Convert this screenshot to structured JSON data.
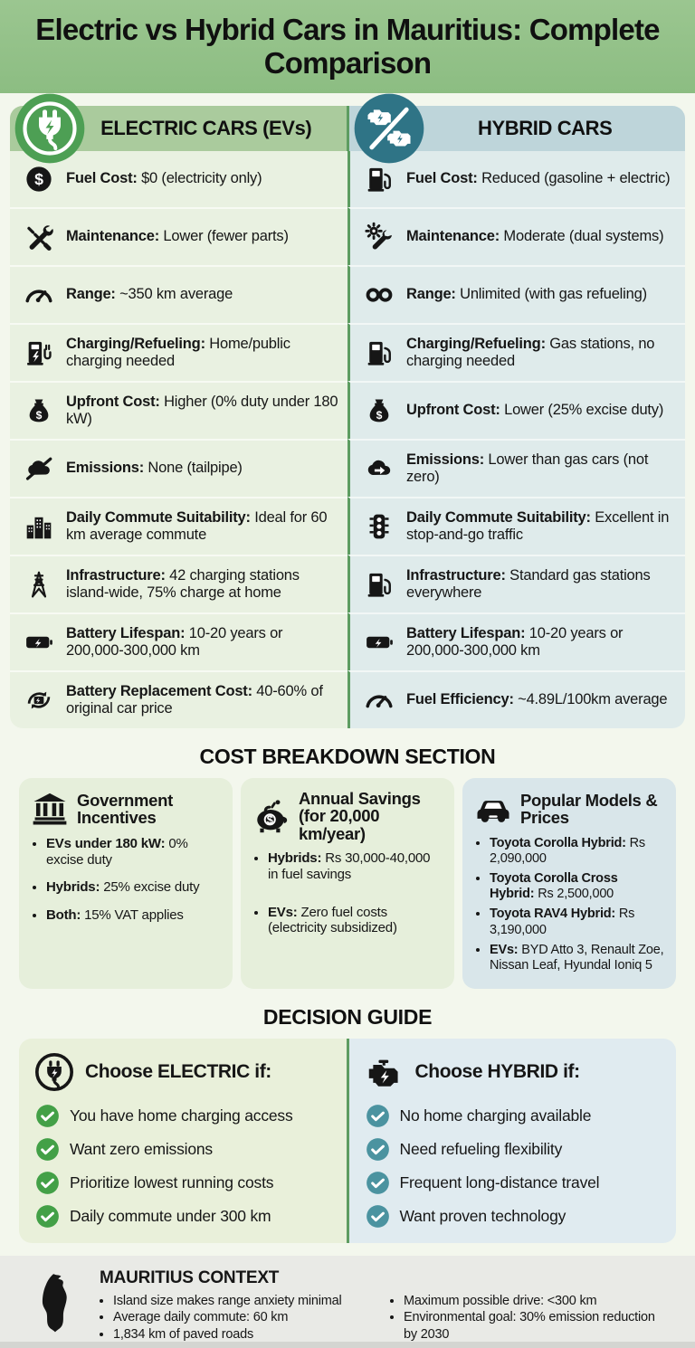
{
  "title": "Electric vs Hybrid Cars in Mauritius: Complete Comparison",
  "colors": {
    "header_green": "#93c189",
    "ev_badge_green": "#4d9f54",
    "hybrid_badge_teal": "#2f7486",
    "left_band": "#aacb9d",
    "right_band": "#bed5da",
    "left_row_bg": "#e9f1e1",
    "right_row_bg": "#dfebeb",
    "divider_green": "#5d9c61",
    "check_green": "#43a047",
    "check_teal": "#4b93a0",
    "footer_bg": "#e9eae6"
  },
  "comparison": {
    "left": {
      "header": "ELECTRIC CARS (EVs)",
      "icon": "ev-plug-badge-icon",
      "rows": [
        {
          "icon": "dollar-circle-icon",
          "label": "Fuel Cost:",
          "text": "$0 (electricity only)"
        },
        {
          "icon": "tools-icon",
          "label": "Maintenance:",
          "text": "Lower (fewer parts)"
        },
        {
          "icon": "gauge-icon",
          "label": "Range:",
          "text": "~350 km average"
        },
        {
          "icon": "charging-station-icon",
          "label": "Charging/Refueling:",
          "text": "Home/public charging needed"
        },
        {
          "icon": "money-bag-icon",
          "label": "Upfront Cost:",
          "text": "Higher (0% duty under 180 kW)"
        },
        {
          "icon": "no-emissions-icon",
          "label": "Emissions:",
          "text": "None (tailpipe)"
        },
        {
          "icon": "city-buildings-icon",
          "label": "Daily Commute Suitability:",
          "text": "Ideal for 60 km average commute"
        },
        {
          "icon": "power-tower-icon",
          "label": "Infrastructure:",
          "text": "42 charging stations island-wide, 75% charge at home"
        },
        {
          "icon": "battery-icon",
          "label": "Battery Lifespan:",
          "text": "10-20 years or 200,000-300,000 km"
        },
        {
          "icon": "battery-replacement-icon",
          "label": "Battery Replacement Cost:",
          "text": "40-60% of original car price"
        }
      ]
    },
    "right": {
      "header": "HYBRID CARS",
      "icon": "hybrid-engines-badge-icon",
      "rows": [
        {
          "icon": "fuel-pump-icon",
          "label": "Fuel Cost:",
          "text": "Reduced (gasoline + electric)"
        },
        {
          "icon": "gear-wrench-icon",
          "label": "Maintenance:",
          "text": "Moderate (dual systems)"
        },
        {
          "icon": "infinity-icon",
          "label": "Range:",
          "text": "Unlimited (with gas refueling)"
        },
        {
          "icon": "fuel-pump-icon",
          "label": "Charging/Refueling:",
          "text": "Gas stations, no charging needed"
        },
        {
          "icon": "money-bag-icon",
          "label": "Upfront Cost:",
          "text": "Lower (25% excise duty)"
        },
        {
          "icon": "emissions-arrow-icon",
          "label": "Emissions:",
          "text": "Lower than gas cars (not zero)"
        },
        {
          "icon": "traffic-light-icon",
          "label": "Daily Commute Suitability:",
          "text": "Excellent in stop-and-go traffic"
        },
        {
          "icon": "fuel-pump-icon",
          "label": "Infrastructure:",
          "text": "Standard gas stations everywhere"
        },
        {
          "icon": "battery-icon",
          "label": "Battery Lifespan:",
          "text": "10-20 years or 200,000-300,000 km"
        },
        {
          "icon": "gauge-icon",
          "label": "Fuel Efficiency:",
          "text": "~4.89L/100km average"
        }
      ]
    }
  },
  "cost_section": {
    "heading": "COST BREAKDOWN SECTION",
    "cards": [
      {
        "icon": "bank-icon",
        "title": "Government Incentives",
        "bullets": [
          {
            "lead": "EVs under 180 kW:",
            "text": "0% excise duty"
          },
          {
            "lead": "Hybrids:",
            "text": "25% excise duty"
          },
          {
            "lead": "Both:",
            "text": "15% VAT applies"
          }
        ]
      },
      {
        "icon": "piggy-bank-icon",
        "title": "Annual Savings (for 20,000 km/year)",
        "bullets": [
          {
            "lead": "Hybrids:",
            "text": "Rs 30,000-40,000 in fuel savings"
          },
          {
            "lead": "EVs:",
            "text": "Zero fuel costs (electricity subsidized)"
          }
        ]
      },
      {
        "icon": "car-icon",
        "title": "Popular Models & Prices",
        "bullets": [
          {
            "lead": "Toyota Corolla Hybrid:",
            "text": "Rs 2,090,000"
          },
          {
            "lead": "Toyota Corolla Cross Hybrid:",
            "text": "Rs 2,500,000"
          },
          {
            "lead": "Toyota RAV4 Hybrid:",
            "text": "Rs 3,190,000"
          },
          {
            "lead": "EVs:",
            "text": "BYD Atto 3, Renault Zoe, Nissan Leaf, Hyundal Ioniq 5"
          }
        ]
      }
    ]
  },
  "decision": {
    "heading": "DECISION GUIDE",
    "panels": [
      {
        "icon": "plug-circle-icon",
        "title": "Choose ELECTRIC if:",
        "check_icon": "check-green-icon",
        "items": [
          "You have home charging access",
          "Want zero emissions",
          "Prioritize lowest running costs",
          "Daily commute under 300 km"
        ]
      },
      {
        "icon": "engine-icon",
        "title": "Choose HYBRID if:",
        "check_icon": "check-teal-icon",
        "items": [
          "No home charging available",
          "Need refueling flexibility",
          "Frequent long-distance travel",
          "Want proven technology"
        ]
      }
    ]
  },
  "footer": {
    "icon": "mauritius-map-icon",
    "title": "MAURITIUS CONTEXT",
    "bullets_left": [
      "Island size makes range anxiety minimal",
      "Average daily commute: 60 km",
      "1,834 km of paved roads"
    ],
    "bullets_right": [
      "Maximum possible drive: <300 km",
      "Environmental goal: 30% emission reduction by 2030"
    ]
  }
}
